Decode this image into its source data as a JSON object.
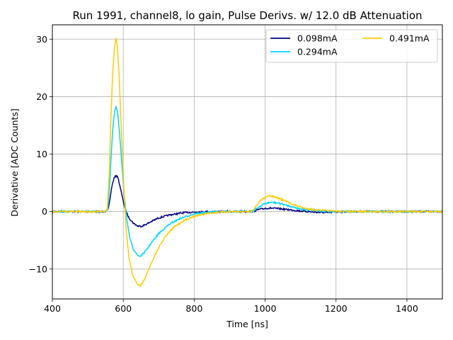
{
  "chart_data": {
    "type": "line",
    "title": "Run 1991, channel8, lo gain, Pulse Derivs. w/ 12.0 dB Attenuation",
    "xlabel": "Time [ns]",
    "ylabel": "Derivative [ADC Counts]",
    "xlim": [
      400,
      1500
    ],
    "ylim": [
      -15.2,
      32.5
    ],
    "xticks": [
      400,
      600,
      800,
      1000,
      1200,
      1400
    ],
    "yticks": [
      -10,
      0,
      10,
      20,
      30
    ],
    "ytick_labels": [
      "−10",
      "0",
      "10",
      "20",
      "30"
    ],
    "grid": true,
    "legend_position": "top-right",
    "legend_columns": 2,
    "series": [
      {
        "name": "0.098mA",
        "color": "#00007f",
        "points": [
          [
            400,
            0
          ],
          [
            550,
            0
          ],
          [
            557,
            0.3
          ],
          [
            562,
            2
          ],
          [
            568,
            4.5
          ],
          [
            574,
            5.8
          ],
          [
            580,
            6.3
          ],
          [
            585,
            5.9
          ],
          [
            590,
            4.6
          ],
          [
            597,
            2.6
          ],
          [
            605,
            0.5
          ],
          [
            615,
            -1
          ],
          [
            628,
            -2
          ],
          [
            640,
            -2.5
          ],
          [
            652,
            -2.55
          ],
          [
            665,
            -2.2
          ],
          [
            680,
            -1.7
          ],
          [
            700,
            -1.1
          ],
          [
            730,
            -0.6
          ],
          [
            770,
            -0.2
          ],
          [
            820,
            -0.03
          ],
          [
            900,
            0
          ],
          [
            960,
            0
          ],
          [
            970,
            0.1
          ],
          [
            985,
            0.4
          ],
          [
            1000,
            0.55
          ],
          [
            1015,
            0.6
          ],
          [
            1040,
            0.5
          ],
          [
            1070,
            0.3
          ],
          [
            1100,
            0.1
          ],
          [
            1140,
            -0.1
          ],
          [
            1170,
            -0.2
          ],
          [
            1200,
            -0.05
          ],
          [
            1250,
            0
          ],
          [
            1500,
            0
          ]
        ]
      },
      {
        "name": "0.294mA",
        "color": "#00d4ff",
        "points": [
          [
            400,
            0
          ],
          [
            550,
            0
          ],
          [
            556,
            0.5
          ],
          [
            561,
            4
          ],
          [
            566,
            10
          ],
          [
            571,
            15
          ],
          [
            576,
            17.5
          ],
          [
            580,
            18.2
          ],
          [
            584,
            17.2
          ],
          [
            589,
            14
          ],
          [
            595,
            9
          ],
          [
            602,
            3.5
          ],
          [
            610,
            -1.5
          ],
          [
            618,
            -4.5
          ],
          [
            628,
            -6.5
          ],
          [
            640,
            -7.6
          ],
          [
            648,
            -7.8
          ],
          [
            660,
            -7.1
          ],
          [
            680,
            -5.4
          ],
          [
            700,
            -3.8
          ],
          [
            730,
            -2.2
          ],
          [
            760,
            -1.2
          ],
          [
            800,
            -0.4
          ],
          [
            850,
            -0.05
          ],
          [
            900,
            0
          ],
          [
            960,
            0
          ],
          [
            970,
            0.3
          ],
          [
            985,
            0.9
          ],
          [
            1000,
            1.4
          ],
          [
            1015,
            1.6
          ],
          [
            1035,
            1.5
          ],
          [
            1060,
            1.1
          ],
          [
            1090,
            0.6
          ],
          [
            1120,
            0.3
          ],
          [
            1160,
            0.1
          ],
          [
            1200,
            0
          ],
          [
            1500,
            0
          ]
        ]
      },
      {
        "name": "0.491mA",
        "color": "#ffcc00",
        "points": [
          [
            400,
            0
          ],
          [
            550,
            0
          ],
          [
            555,
            0.5
          ],
          [
            560,
            6
          ],
          [
            565,
            16
          ],
          [
            570,
            24
          ],
          [
            575,
            28.5
          ],
          [
            579,
            30.2
          ],
          [
            583,
            29
          ],
          [
            588,
            24
          ],
          [
            594,
            15
          ],
          [
            601,
            5
          ],
          [
            608,
            -3
          ],
          [
            616,
            -8
          ],
          [
            626,
            -11
          ],
          [
            638,
            -12.5
          ],
          [
            648,
            -12.9
          ],
          [
            660,
            -11.8
          ],
          [
            680,
            -8.8
          ],
          [
            700,
            -6.2
          ],
          [
            720,
            -4.2
          ],
          [
            745,
            -2.6
          ],
          [
            770,
            -1.6
          ],
          [
            800,
            -0.8
          ],
          [
            840,
            -0.3
          ],
          [
            880,
            -0.05
          ],
          [
            960,
            0
          ],
          [
            970,
            0.6
          ],
          [
            985,
            1.8
          ],
          [
            1000,
            2.5
          ],
          [
            1012,
            2.8
          ],
          [
            1030,
            2.5
          ],
          [
            1055,
            1.9
          ],
          [
            1080,
            1.2
          ],
          [
            1110,
            0.6
          ],
          [
            1150,
            0.25
          ],
          [
            1200,
            0.05
          ],
          [
            1250,
            0
          ],
          [
            1500,
            0
          ]
        ]
      }
    ]
  }
}
